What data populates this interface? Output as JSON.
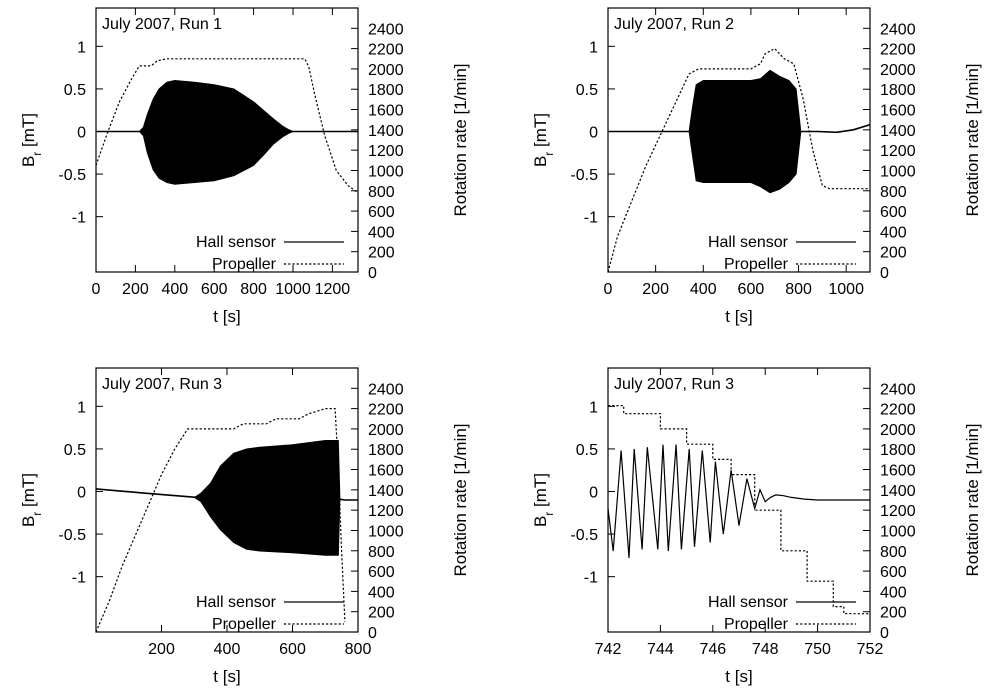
{
  "chart_data": [
    {
      "type": "line",
      "title": "July 2007, Run 1",
      "xlabel": "t [s]",
      "ylabel": "B_r [mT]",
      "y2label": "Rotation rate [1/min]",
      "xlim": [
        0,
        1330
      ],
      "ylim": [
        -1.65,
        1.45
      ],
      "y2lim": [
        0,
        2600
      ],
      "xticks": [
        0,
        200,
        400,
        600,
        800,
        1000,
        1200
      ],
      "xtick_labels": [
        "0",
        "200",
        "400",
        "600",
        "800",
        "1000",
        "1200"
      ],
      "yticks": [
        -1,
        -0.5,
        0,
        0.5,
        1
      ],
      "ytick_labels": [
        "-1",
        "-0.5",
        "0",
        "0.5",
        "1"
      ],
      "y2ticks": [
        0,
        200,
        400,
        600,
        800,
        1000,
        1200,
        1400,
        1600,
        1800,
        2000,
        2200,
        2400
      ],
      "y2tick_labels": [
        "0",
        "200",
        "400",
        "600",
        "800",
        "1000",
        "1200",
        "1400",
        "1600",
        "1800",
        "2000",
        "2200",
        "2400"
      ],
      "legend": "bottom-right",
      "grid": false,
      "series": [
        {
          "name": "Hall sensor",
          "axis": "left",
          "style": "solid",
          "baseline": [
            [
              0,
              0
            ],
            [
              1330,
              0
            ]
          ],
          "envelope": {
            "x": [
              220,
              240,
              260,
              290,
              320,
              360,
              400,
              500,
              600,
              700,
              800,
              850,
              900,
              950,
              980,
              1000,
              1330
            ],
            "upper": [
              0,
              0.05,
              0.2,
              0.38,
              0.5,
              0.58,
              0.6,
              0.58,
              0.55,
              0.5,
              0.35,
              0.25,
              0.15,
              0.06,
              0.02,
              0,
              0
            ],
            "lower": [
              0,
              -0.05,
              -0.25,
              -0.45,
              -0.55,
              -0.6,
              -0.62,
              -0.6,
              -0.58,
              -0.52,
              -0.4,
              -0.28,
              -0.15,
              -0.06,
              -0.02,
              0,
              0
            ]
          }
        },
        {
          "name": "Propeller",
          "axis": "right",
          "style": "dotted",
          "x": [
            0,
            60,
            120,
            180,
            220,
            280,
            310,
            360,
            1060,
            1080,
            1110,
            1160,
            1220,
            1280,
            1330
          ],
          "y": [
            1050,
            1380,
            1680,
            1900,
            2030,
            2030,
            2080,
            2100,
            2100,
            2020,
            1750,
            1350,
            1000,
            850,
            780
          ]
        }
      ]
    },
    {
      "type": "line",
      "title": "July 2007, Run 2",
      "xlabel": "t [s]",
      "ylabel": "B_r [mT]",
      "y2label": "Rotation rate [1/min]",
      "xlim": [
        0,
        1100
      ],
      "ylim": [
        -1.65,
        1.45
      ],
      "y2lim": [
        0,
        2600
      ],
      "xticks": [
        0,
        200,
        400,
        600,
        800,
        1000
      ],
      "xtick_labels": [
        "0",
        "200",
        "400",
        "600",
        "800",
        "1000"
      ],
      "yticks": [
        -1,
        -0.5,
        0,
        0.5,
        1
      ],
      "ytick_labels": [
        "-1",
        "-0.5",
        "0",
        "0.5",
        "1"
      ],
      "y2ticks": [
        0,
        200,
        400,
        600,
        800,
        1000,
        1200,
        1400,
        1600,
        1800,
        2000,
        2200,
        2400
      ],
      "y2tick_labels": [
        "0",
        "200",
        "400",
        "600",
        "800",
        "1000",
        "1200",
        "1400",
        "1600",
        "1800",
        "2000",
        "2200",
        "2400"
      ],
      "legend": "bottom-right",
      "grid": false,
      "series": [
        {
          "name": "Hall sensor",
          "axis": "left",
          "style": "solid",
          "baseline": [
            [
              0,
              0
            ],
            [
              880,
              0
            ],
            [
              960,
              -0.01
            ],
            [
              1030,
              0.02
            ],
            [
              1100,
              0.08
            ]
          ],
          "envelope": {
            "x": [
              340,
              355,
              370,
              400,
              500,
              600,
              640,
              680,
              720,
              760,
              790,
              810
            ],
            "upper": [
              0,
              0.3,
              0.55,
              0.6,
              0.6,
              0.6,
              0.62,
              0.72,
              0.65,
              0.6,
              0.5,
              0
            ],
            "lower": [
              0,
              -0.3,
              -0.58,
              -0.6,
              -0.6,
              -0.6,
              -0.65,
              -0.72,
              -0.68,
              -0.6,
              -0.5,
              0
            ]
          }
        },
        {
          "name": "Propeller",
          "axis": "right",
          "style": "dotted",
          "x": [
            0,
            40,
            100,
            160,
            220,
            280,
            340,
            380,
            600,
            640,
            660,
            700,
            740,
            780,
            820,
            860,
            900,
            930,
            1100
          ],
          "y": [
            0,
            350,
            700,
            1050,
            1350,
            1650,
            1950,
            2000,
            2000,
            2050,
            2150,
            2200,
            2100,
            2050,
            1700,
            1200,
            850,
            820,
            820
          ]
        }
      ]
    },
    {
      "type": "line",
      "title": "July 2007, Run 3",
      "xlabel": "t [s]",
      "ylabel": "B_r [mT]",
      "y2label": "Rotation rate [1/min]",
      "xlim": [
        0,
        800
      ],
      "ylim": [
        -1.65,
        1.45
      ],
      "y2lim": [
        0,
        2600
      ],
      "xticks": [
        200,
        400,
        600,
        800
      ],
      "xtick_labels": [
        "200",
        "400",
        "600",
        "800"
      ],
      "yticks": [
        -1,
        -0.5,
        0,
        0.5,
        1
      ],
      "ytick_labels": [
        "-1",
        "-0.5",
        "0",
        "0.5",
        "1"
      ],
      "y2ticks": [
        0,
        200,
        400,
        600,
        800,
        1000,
        1200,
        1400,
        1600,
        1800,
        2000,
        2200,
        2400
      ],
      "y2tick_labels": [
        "0",
        "200",
        "400",
        "600",
        "800",
        "1000",
        "1200",
        "1400",
        "1600",
        "1800",
        "2000",
        "2200",
        "2400"
      ],
      "legend": "bottom-right",
      "grid": false,
      "series": [
        {
          "name": "Hall sensor",
          "axis": "left",
          "style": "solid",
          "baseline": [
            [
              0,
              0.03
            ],
            [
              150,
              -0.02
            ],
            [
              310,
              -0.07
            ],
            [
              340,
              -0.08
            ],
            [
              360,
              -0.09
            ],
            [
              740,
              -0.09
            ],
            [
              760,
              -0.1
            ],
            [
              800,
              -0.1
            ]
          ],
          "envelope": {
            "x": [
              300,
              320,
              350,
              380,
              420,
              460,
              500,
              600,
              700,
              740,
              745
            ],
            "upper": [
              -0.07,
              -0.02,
              0.1,
              0.3,
              0.45,
              0.5,
              0.52,
              0.55,
              0.6,
              0.6,
              -0.09
            ],
            "lower": [
              -0.07,
              -0.12,
              -0.3,
              -0.45,
              -0.6,
              -0.68,
              -0.7,
              -0.72,
              -0.75,
              -0.75,
              -0.09
            ]
          }
        },
        {
          "name": "Propeller",
          "axis": "right",
          "style": "dotted",
          "x": [
            0,
            40,
            80,
            120,
            160,
            200,
            240,
            280,
            320,
            420,
            450,
            520,
            550,
            620,
            650,
            700,
            730,
            740,
            750,
            760
          ],
          "y": [
            0,
            300,
            650,
            950,
            1250,
            1550,
            1800,
            2000,
            2000,
            2000,
            2050,
            2050,
            2100,
            2100,
            2150,
            2200,
            2200,
            1600,
            800,
            100
          ]
        }
      ]
    },
    {
      "type": "line",
      "title": "July 2007, Run 3",
      "xlabel": "t [s]",
      "ylabel": "B_r [mT]",
      "y2label": "Rotation rate [1/min]",
      "xlim": [
        742,
        752
      ],
      "ylim": [
        -1.65,
        1.45
      ],
      "y2lim": [
        0,
        2600
      ],
      "xticks": [
        742,
        744,
        746,
        748,
        750,
        752
      ],
      "xtick_labels": [
        "742",
        "744",
        "746",
        "748",
        "750",
        "752"
      ],
      "yticks": [
        -1,
        -0.5,
        0,
        0.5,
        1
      ],
      "ytick_labels": [
        "-1",
        "-0.5",
        "0",
        "0.5",
        "1"
      ],
      "y2ticks": [
        0,
        200,
        400,
        600,
        800,
        1000,
        1200,
        1400,
        1600,
        1800,
        2000,
        2200,
        2400
      ],
      "y2tick_labels": [
        "0",
        "200",
        "400",
        "600",
        "800",
        "1000",
        "1200",
        "1400",
        "1600",
        "1800",
        "2000",
        "2200",
        "2400"
      ],
      "legend": "bottom-right",
      "grid": false,
      "series": [
        {
          "name": "Hall sensor",
          "axis": "left",
          "style": "solid",
          "x": [
            742.0,
            742.2,
            742.5,
            742.8,
            743.0,
            743.3,
            743.5,
            743.9,
            744.1,
            744.3,
            744.6,
            744.8,
            745.1,
            745.3,
            745.6,
            745.9,
            746.1,
            746.4,
            746.7,
            747.0,
            747.3,
            747.6,
            747.8,
            748.0,
            748.2,
            748.4,
            748.7,
            749.0,
            749.5,
            750.0,
            751.0,
            752.0
          ],
          "y": [
            -0.2,
            -0.7,
            0.48,
            -0.78,
            0.5,
            -0.68,
            0.52,
            -0.68,
            0.55,
            -0.7,
            0.55,
            -0.68,
            0.5,
            -0.65,
            0.48,
            -0.6,
            0.35,
            -0.5,
            0.25,
            -0.4,
            0.15,
            -0.2,
            0.02,
            -0.12,
            -0.07,
            -0.04,
            -0.05,
            -0.07,
            -0.09,
            -0.1,
            -0.1,
            -0.1
          ]
        },
        {
          "name": "Propeller",
          "axis": "right",
          "style": "dotted",
          "x": [
            742.0,
            742.6,
            742.6,
            744.0,
            744.0,
            745.0,
            745.0,
            746.0,
            746.0,
            746.7,
            746.7,
            747.6,
            747.6,
            748.6,
            748.6,
            749.6,
            749.6,
            750.6,
            750.6,
            751.0,
            751.0,
            752.0
          ],
          "y": [
            2230,
            2230,
            2150,
            2150,
            2000,
            2000,
            1850,
            1850,
            1700,
            1700,
            1550,
            1550,
            1200,
            1200,
            800,
            800,
            500,
            500,
            250,
            250,
            180,
            180
          ]
        }
      ]
    }
  ]
}
